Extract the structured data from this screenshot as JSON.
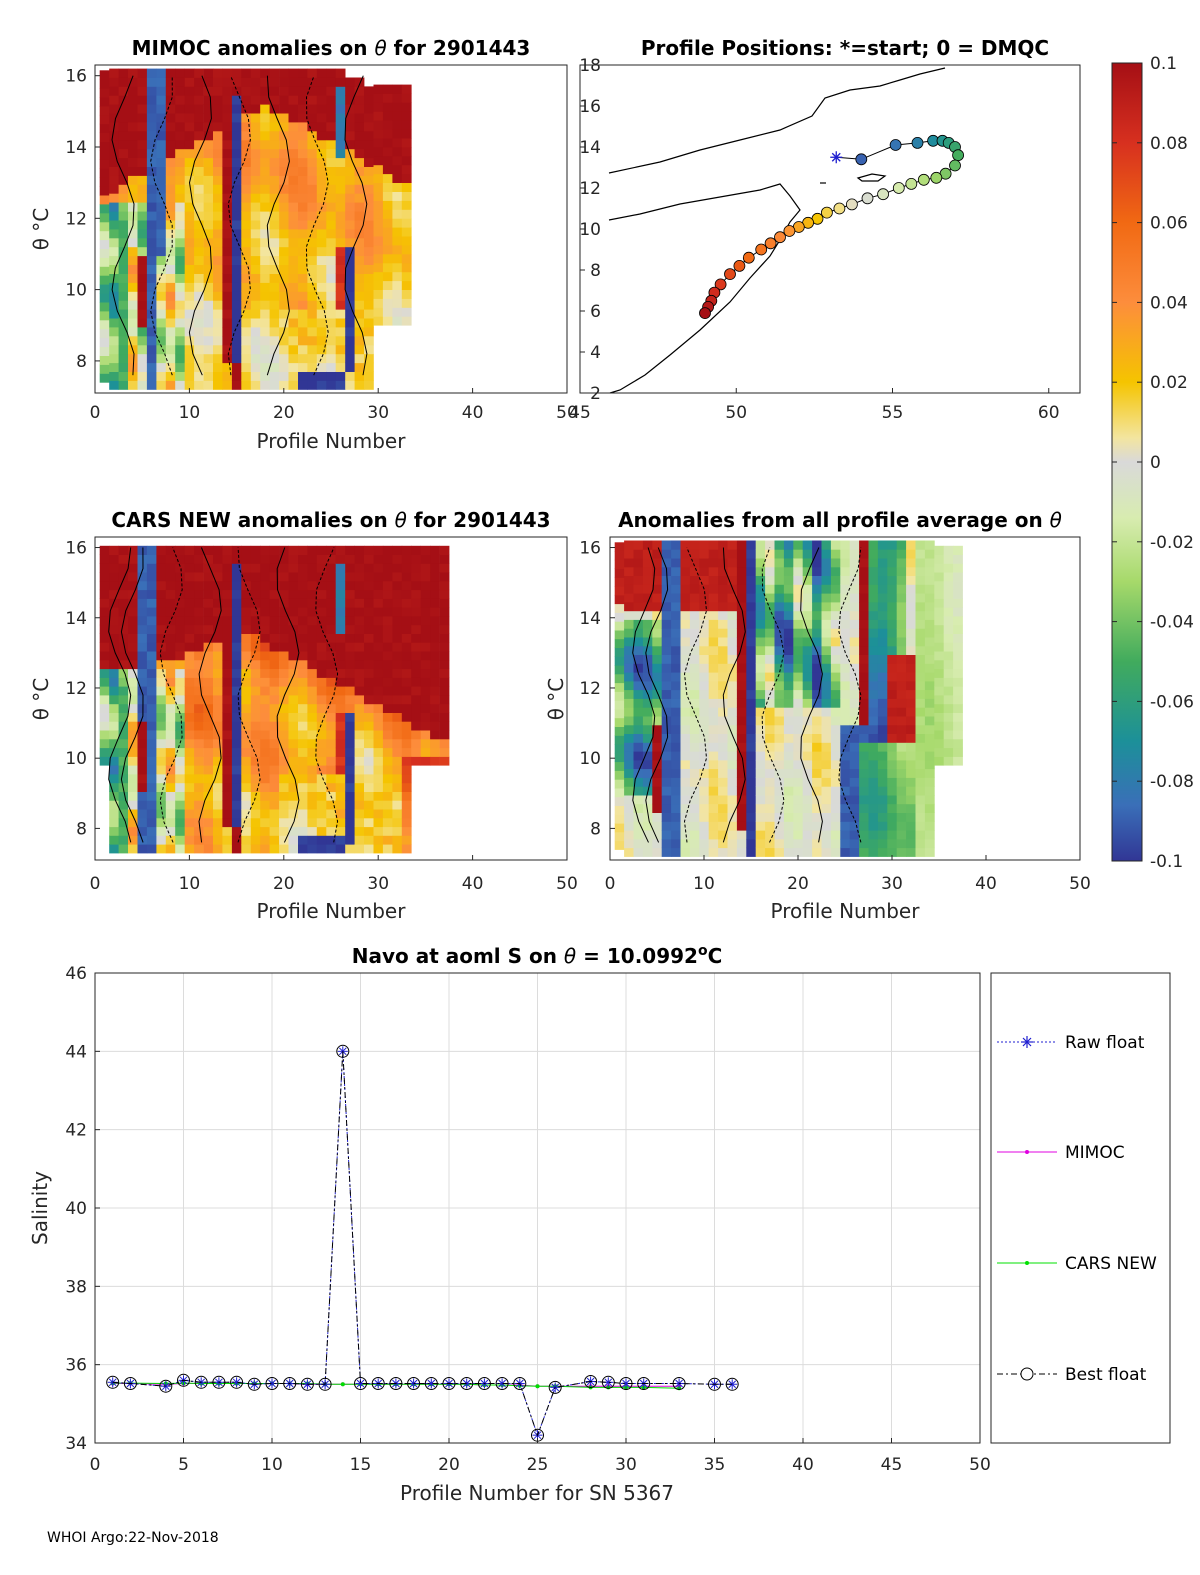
{
  "footer": "WHOI Argo:22-Nov-2018",
  "colors": {
    "raw": "#1f1fd0",
    "mimoc": "#e000e0",
    "cars": "#00e000",
    "best": "#000000",
    "red": "#b40f1e",
    "blue": "#3a5a9e",
    "grey": "#d9d9d9"
  },
  "panels": {
    "p1": {
      "title_a": "MIMOC anomalies on ",
      "title_b": "  for 2901443",
      "theta": "θ",
      "ylabel": "θ °C",
      "xlabel": "Profile Number",
      "xticks": [
        "0",
        "10",
        "20",
        "30",
        "40",
        "50"
      ],
      "yticks": [
        "8",
        "10",
        "12",
        "14",
        "16"
      ]
    },
    "p2": {
      "title": "Profile Positions: *=start; 0 = DMQC",
      "xticks": [
        "45",
        "50",
        "55",
        "60"
      ],
      "yticks": [
        "2",
        "4",
        "6",
        "8",
        "10",
        "12",
        "14",
        "16",
        "18"
      ]
    },
    "p3": {
      "title_a": "CARS NEW anomalies on ",
      "title_b": " for 2901443",
      "theta": "θ",
      "ylabel": "θ °C",
      "xlabel": "Profile Number",
      "xticks": [
        "0",
        "10",
        "20",
        "30",
        "40",
        "50"
      ],
      "yticks": [
        "8",
        "10",
        "12",
        "14",
        "16"
      ]
    },
    "p4": {
      "title_a": "Anomalies from all profile average on ",
      "theta": "θ",
      "ylabel": "θ °C",
      "xlabel": "Profile Number",
      "xticks": [
        "0",
        "10",
        "20",
        "30",
        "40",
        "50"
      ],
      "yticks": [
        "8",
        "10",
        "12",
        "14",
        "16"
      ]
    },
    "p5": {
      "title_a": "Navo at aoml S on ",
      "theta": "θ",
      "title_b": " = 10.0992",
      "title_sup": "o",
      "title_c": "C",
      "ylabel": "Salinity",
      "xlabel": "Profile Number for SN 5367",
      "xticks": [
        "0",
        "5",
        "10",
        "15",
        "20",
        "25",
        "30",
        "35",
        "40",
        "45",
        "50"
      ],
      "yticks": [
        "34",
        "36",
        "38",
        "40",
        "42",
        "44",
        "46"
      ]
    }
  },
  "colorbar": {
    "ticks": [
      "0.1",
      "0.08",
      "0.06",
      "0.04",
      "0.02",
      "0",
      "-0.02",
      "-0.04",
      "-0.06",
      "-0.08",
      "-0.1"
    ]
  },
  "legend": {
    "raw": "Raw float",
    "mimoc": "MIMOC",
    "cars": "CARS NEW",
    "best": "Best float"
  },
  "chart_data": [
    {
      "type": "heatmap",
      "title": "MIMOC anomalies on θ  for 2901443",
      "xlabel": "Profile Number",
      "ylabel": "θ °C",
      "xlim": [
        0,
        50
      ],
      "ylim": [
        7.1,
        16.3
      ],
      "clim": [
        -0.1,
        0.1
      ]
    },
    {
      "type": "scatter",
      "title": "Profile Positions: *=start; 0 = DMQC",
      "xlim": [
        45,
        61
      ],
      "ylim": [
        2,
        18
      ],
      "track": {
        "lon": [
          53.2,
          54.0,
          55.1,
          55.8,
          56.3,
          56.6,
          56.8,
          57.0,
          57.1,
          57.0,
          56.7,
          56.4,
          56.0,
          55.6,
          55.2,
          54.7,
          54.2,
          53.7,
          53.3,
          52.9,
          52.6,
          52.3,
          52.0,
          51.7,
          51.4,
          51.1,
          50.8,
          50.4,
          50.1,
          49.8,
          49.5,
          49.3,
          49.2,
          49.1,
          49.0
        ],
        "lat": [
          13.5,
          13.4,
          14.1,
          14.2,
          14.3,
          14.3,
          14.2,
          14.0,
          13.6,
          13.1,
          12.7,
          12.5,
          12.4,
          12.2,
          12.0,
          11.7,
          11.5,
          11.2,
          11.0,
          10.8,
          10.5,
          10.3,
          10.1,
          9.9,
          9.6,
          9.3,
          9.0,
          8.6,
          8.2,
          7.8,
          7.3,
          6.9,
          6.5,
          6.2,
          5.9
        ]
      }
    },
    {
      "type": "heatmap",
      "title": "CARS NEW anomalies on θ for 2901443",
      "xlabel": "Profile Number",
      "ylabel": "θ °C",
      "xlim": [
        0,
        50
      ],
      "ylim": [
        7.1,
        16.3
      ],
      "clim": [
        -0.1,
        0.1
      ]
    },
    {
      "type": "heatmap",
      "title": "Anomalies from all profile average on θ",
      "xlabel": "Profile Number",
      "ylabel": "θ °C",
      "xlim": [
        0,
        50
      ],
      "ylim": [
        7.1,
        16.3
      ],
      "clim": [
        -0.1,
        0.1
      ]
    },
    {
      "type": "line",
      "title": "Navo at aoml S on θ = 10.0992°C",
      "xlabel": "Profile Number for SN 5367",
      "ylabel": "Salinity",
      "xlim": [
        0,
        50
      ],
      "ylim": [
        34,
        46
      ],
      "series": [
        {
          "name": "Raw float",
          "x": [
            1,
            2,
            4,
            5,
            6,
            7,
            8,
            9,
            10,
            11,
            12,
            13,
            14,
            15,
            16,
            17,
            18,
            19,
            20,
            21,
            22,
            23,
            24,
            25,
            26,
            28,
            29,
            30,
            31,
            33,
            35,
            36
          ],
          "values": [
            35.55,
            35.52,
            35.45,
            35.6,
            35.55,
            35.55,
            35.55,
            35.5,
            35.52,
            35.52,
            35.5,
            35.5,
            44.0,
            35.52,
            35.52,
            35.52,
            35.52,
            35.52,
            35.52,
            35.52,
            35.52,
            35.52,
            35.52,
            34.2,
            35.42,
            35.57,
            35.55,
            35.52,
            35.52,
            35.52,
            35.5,
            35.5
          ]
        },
        {
          "name": "MIMOC",
          "x": [
            1,
            2,
            4,
            5,
            6,
            7,
            8,
            9,
            10,
            11,
            12,
            13,
            14,
            15,
            16,
            17,
            18,
            19,
            20,
            21,
            22,
            23,
            24,
            25,
            26,
            28,
            29,
            30,
            31,
            33
          ],
          "values": [
            35.52,
            35.52,
            35.5,
            35.52,
            35.52,
            35.52,
            35.52,
            35.52,
            35.52,
            35.52,
            35.5,
            35.5,
            35.5,
            35.5,
            35.5,
            35.5,
            35.5,
            35.5,
            35.5,
            35.5,
            35.48,
            35.48,
            35.48,
            35.45,
            35.45,
            35.45,
            35.45,
            35.45,
            35.45,
            35.45
          ]
        },
        {
          "name": "CARS NEW",
          "x": [
            1,
            2,
            4,
            5,
            6,
            7,
            8,
            9,
            10,
            11,
            12,
            13,
            14,
            15,
            16,
            17,
            18,
            19,
            20,
            21,
            22,
            23,
            24,
            25,
            26,
            28,
            29,
            30,
            31,
            33
          ],
          "values": [
            35.53,
            35.53,
            35.52,
            35.53,
            35.52,
            35.52,
            35.52,
            35.52,
            35.52,
            35.52,
            35.52,
            35.5,
            35.5,
            35.5,
            35.5,
            35.5,
            35.5,
            35.5,
            35.5,
            35.5,
            35.48,
            35.48,
            35.46,
            35.45,
            35.45,
            35.42,
            35.42,
            35.42,
            35.42,
            35.4
          ]
        },
        {
          "name": "Best float",
          "x": [
            1,
            2,
            4,
            5,
            6,
            7,
            8,
            9,
            10,
            11,
            12,
            13,
            14,
            15,
            16,
            17,
            18,
            19,
            20,
            21,
            22,
            23,
            24,
            25,
            26,
            28,
            29,
            30,
            31,
            33,
            35,
            36
          ],
          "values": [
            35.55,
            35.52,
            35.45,
            35.6,
            35.55,
            35.55,
            35.55,
            35.5,
            35.52,
            35.52,
            35.5,
            35.5,
            44.0,
            35.52,
            35.52,
            35.52,
            35.52,
            35.52,
            35.52,
            35.52,
            35.52,
            35.52,
            35.52,
            34.2,
            35.42,
            35.57,
            35.55,
            35.52,
            35.52,
            35.52,
            35.5,
            35.5
          ]
        }
      ]
    }
  ]
}
